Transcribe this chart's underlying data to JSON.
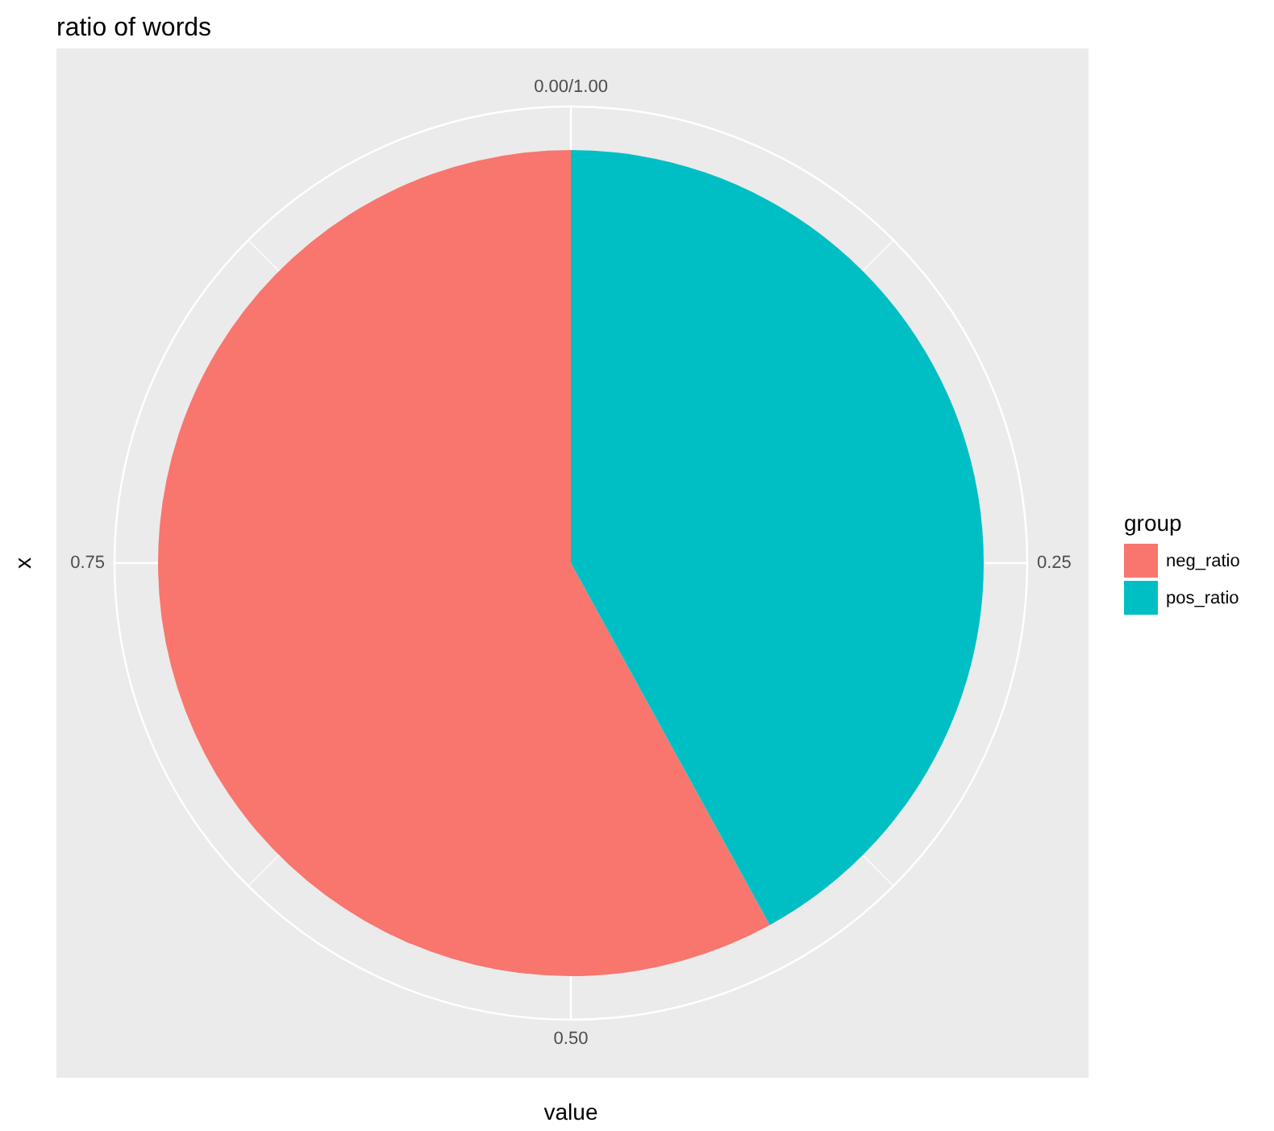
{
  "chart_data": {
    "type": "pie",
    "title": "ratio of words",
    "xlabel": "value",
    "ylabel": "x",
    "legend_title": "group",
    "categories": [
      "neg_ratio",
      "pos_ratio"
    ],
    "values": [
      0.58,
      0.42
    ],
    "colors": [
      "#f8766d",
      "#00bfc4"
    ],
    "annotations": [
      "0.00/1.00",
      "0.25",
      "0.50",
      "0.75"
    ],
    "grid": true,
    "legend": "right"
  }
}
